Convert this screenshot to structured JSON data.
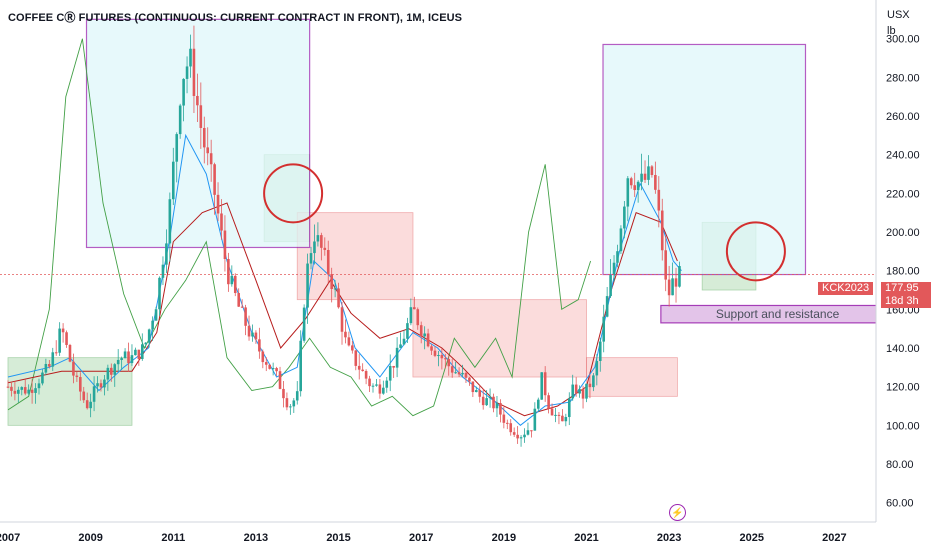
{
  "header": {
    "title": "COFFEE CⓇ FUTURES (CONTINUOUS: CURRENT CONTRACT IN FRONT), 1M, ICEUS"
  },
  "axis": {
    "unit_line1": "USX",
    "unit_line2": "lb"
  },
  "markers": {
    "ticker_label": "KCK2023",
    "price_label": "177.95",
    "countdown_label": "18d 3h",
    "zone_label": "Support and resistance",
    "event_icon": "lightning-icon"
  },
  "colors": {
    "up": "#26a69a",
    "down": "#e2585a",
    "conversion": "#2196f3",
    "base": "#b71c1c",
    "lagging": "#43a047",
    "cloud_bull": "#a5d6a7",
    "cloud_bear": "#f8bbbb",
    "box_fill": "#e0f7fa",
    "box_border": "#9c27b0",
    "zone_fill": "#e1bee7",
    "circle": "#d32f2f"
  },
  "chart_data": {
    "type": "candlestick",
    "title": "COFFEE CⓇ FUTURES (CONTINUOUS: CURRENT CONTRACT IN FRONT), 1M, ICEUS",
    "xlabel": "",
    "ylabel": "",
    "x_ticks": [
      "2007",
      "2009",
      "2011",
      "2013",
      "2015",
      "2017",
      "2019",
      "2021",
      "2023",
      "2025",
      "2027"
    ],
    "y_ticks": [
      60,
      80,
      100,
      120,
      140,
      160,
      180,
      200,
      220,
      240,
      260,
      280,
      300
    ],
    "ylim": [
      50,
      320
    ],
    "xlim": [
      2007.0,
      2028.2
    ],
    "last_price": 177.95,
    "grid": false,
    "price_path": [
      [
        2007.0,
        120
      ],
      [
        2007.5,
        118
      ],
      [
        2008.0,
        130
      ],
      [
        2008.3,
        150
      ],
      [
        2008.6,
        125
      ],
      [
        2008.9,
        110
      ],
      [
        2009.3,
        125
      ],
      [
        2009.7,
        135
      ],
      [
        2010.0,
        135
      ],
      [
        2010.3,
        140
      ],
      [
        2010.6,
        165
      ],
      [
        2010.9,
        210
      ],
      [
        2011.2,
        280
      ],
      [
        2011.4,
        290
      ],
      [
        2011.7,
        250
      ],
      [
        2012.0,
        220
      ],
      [
        2012.3,
        180
      ],
      [
        2012.6,
        160
      ],
      [
        2012.9,
        145
      ],
      [
        2013.2,
        135
      ],
      [
        2013.5,
        125
      ],
      [
        2013.8,
        110
      ],
      [
        2014.0,
        115
      ],
      [
        2014.2,
        175
      ],
      [
        2014.4,
        200
      ],
      [
        2014.6,
        190
      ],
      [
        2014.9,
        170
      ],
      [
        2015.2,
        140
      ],
      [
        2015.5,
        130
      ],
      [
        2015.8,
        120
      ],
      [
        2016.0,
        120
      ],
      [
        2016.4,
        135
      ],
      [
        2016.8,
        160
      ],
      [
        2017.0,
        150
      ],
      [
        2017.3,
        140
      ],
      [
        2017.7,
        130
      ],
      [
        2018.0,
        125
      ],
      [
        2018.4,
        115
      ],
      [
        2018.8,
        110
      ],
      [
        2019.1,
        100
      ],
      [
        2019.4,
        95
      ],
      [
        2019.7,
        100
      ],
      [
        2019.9,
        125
      ],
      [
        2020.1,
        110
      ],
      [
        2020.4,
        100
      ],
      [
        2020.7,
        120
      ],
      [
        2020.9,
        115
      ],
      [
        2021.2,
        125
      ],
      [
        2021.5,
        165
      ],
      [
        2021.8,
        200
      ],
      [
        2022.0,
        230
      ],
      [
        2022.3,
        225
      ],
      [
        2022.6,
        230
      ],
      [
        2022.8,
        200
      ],
      [
        2022.95,
        165
      ],
      [
        2023.1,
        175
      ],
      [
        2023.3,
        178
      ]
    ],
    "ichimoku": {
      "conversion_line": [
        [
          2007.0,
          125
        ],
        [
          2008.0,
          130
        ],
        [
          2008.5,
          135
        ],
        [
          2009.2,
          118
        ],
        [
          2009.8,
          130
        ],
        [
          2010.4,
          140
        ],
        [
          2010.9,
          195
        ],
        [
          2011.3,
          250
        ],
        [
          2011.8,
          230
        ],
        [
          2012.3,
          185
        ],
        [
          2012.9,
          148
        ],
        [
          2013.5,
          125
        ],
        [
          2014.0,
          130
        ],
        [
          2014.4,
          185
        ],
        [
          2014.9,
          175
        ],
        [
          2015.4,
          140
        ],
        [
          2016.0,
          125
        ],
        [
          2016.8,
          148
        ],
        [
          2017.4,
          140
        ],
        [
          2018.0,
          125
        ],
        [
          2018.8,
          112
        ],
        [
          2019.4,
          100
        ],
        [
          2020.0,
          110
        ],
        [
          2020.6,
          112
        ],
        [
          2021.2,
          130
        ],
        [
          2021.8,
          190
        ],
        [
          2022.3,
          225
        ],
        [
          2022.8,
          205
        ],
        [
          2023.1,
          185
        ],
        [
          2023.3,
          180
        ]
      ],
      "base_line": [
        [
          2007.0,
          122
        ],
        [
          2008.3,
          128
        ],
        [
          2009.0,
          128
        ],
        [
          2010.0,
          128
        ],
        [
          2010.6,
          148
        ],
        [
          2011.0,
          195
        ],
        [
          2011.7,
          210
        ],
        [
          2012.3,
          215
        ],
        [
          2013.0,
          175
        ],
        [
          2013.6,
          140
        ],
        [
          2014.2,
          155
        ],
        [
          2014.8,
          175
        ],
        [
          2015.3,
          158
        ],
        [
          2016.0,
          145
        ],
        [
          2016.7,
          150
        ],
        [
          2017.5,
          140
        ],
        [
          2018.0,
          130
        ],
        [
          2018.8,
          112
        ],
        [
          2019.5,
          105
        ],
        [
          2020.3,
          110
        ],
        [
          2021.0,
          120
        ],
        [
          2021.6,
          170
        ],
        [
          2022.2,
          210
        ],
        [
          2022.8,
          205
        ],
        [
          2023.2,
          185
        ]
      ],
      "lagging_span": [
        [
          2007.0,
          108
        ],
        [
          2007.5,
          115
        ],
        [
          2008.0,
          160
        ],
        [
          2008.4,
          270
        ],
        [
          2008.8,
          300
        ],
        [
          2009.3,
          215
        ],
        [
          2009.8,
          168
        ],
        [
          2010.3,
          140
        ],
        [
          2010.8,
          160
        ],
        [
          2011.3,
          175
        ],
        [
          2011.8,
          195
        ],
        [
          2012.3,
          135
        ],
        [
          2012.9,
          118
        ],
        [
          2013.4,
          120
        ],
        [
          2013.8,
          130
        ],
        [
          2014.3,
          145
        ],
        [
          2014.8,
          130
        ],
        [
          2015.3,
          125
        ],
        [
          2015.8,
          110
        ],
        [
          2016.3,
          115
        ],
        [
          2016.8,
          105
        ],
        [
          2017.3,
          110
        ],
        [
          2017.8,
          145
        ],
        [
          2018.3,
          130
        ],
        [
          2018.8,
          145
        ],
        [
          2019.2,
          125
        ],
        [
          2019.6,
          200
        ],
        [
          2020.0,
          235
        ],
        [
          2020.4,
          160
        ],
        [
          2020.8,
          165
        ],
        [
          2021.1,
          185
        ]
      ],
      "cloud_bull_regions": [
        {
          "x": [
            2007.0,
            2010.0
          ],
          "upper": 135,
          "lower": 100
        },
        {
          "x": [
            2013.2,
            2014.3
          ],
          "upper": 240,
          "lower": 195
        },
        {
          "x": [
            2023.8,
            2025.1
          ],
          "upper": 205,
          "lower": 170
        }
      ],
      "cloud_bear_regions": [
        {
          "x": [
            2014.0,
            2016.8
          ],
          "upper": 210,
          "lower": 165
        },
        {
          "x": [
            2016.8,
            2021.0
          ],
          "upper": 165,
          "lower": 125
        },
        {
          "x": [
            2021.0,
            2023.2
          ],
          "upper": 135,
          "lower": 115
        }
      ]
    },
    "annotations": [
      {
        "type": "rectangle",
        "x": [
          2008.9,
          2014.3
        ],
        "y": [
          192,
          310
        ],
        "label": ""
      },
      {
        "type": "rectangle",
        "x": [
          2021.4,
          2026.3
        ],
        "y": [
          178,
          297
        ],
        "label": ""
      },
      {
        "type": "rectangle",
        "x": [
          2022.8,
          2028.2
        ],
        "y": [
          153,
          162
        ],
        "label": "Support and resistance"
      },
      {
        "type": "circle",
        "x": 2013.9,
        "y": 220,
        "label": ""
      },
      {
        "type": "circle",
        "x": 2025.1,
        "y": 190,
        "label": ""
      }
    ],
    "legend": "none"
  }
}
